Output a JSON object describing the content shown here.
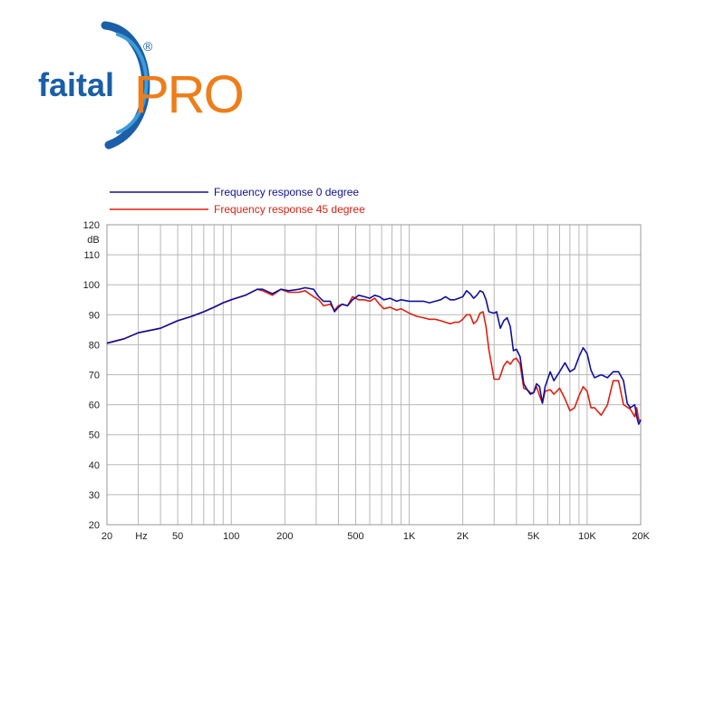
{
  "logo": {
    "wordmark": "faital",
    "mark": "PRO",
    "registered": "®",
    "colors": {
      "blue": "#1a5fa8",
      "orange": "#ee7d1a"
    }
  },
  "chart_data": {
    "type": "line",
    "title": "",
    "xlabel": "Hz",
    "ylabel": "dB",
    "x_scale": "log",
    "xlim": [
      20,
      20000
    ],
    "ylim": [
      20,
      120
    ],
    "grid": true,
    "legend_position": "top-left",
    "y_ticks": [
      20,
      30,
      40,
      50,
      60,
      70,
      80,
      90,
      100,
      110,
      120
    ],
    "x_ticks": [
      {
        "value": 20,
        "label": "20"
      },
      {
        "value": 50,
        "label": "50"
      },
      {
        "value": 100,
        "label": "100"
      },
      {
        "value": 200,
        "label": "200"
      },
      {
        "value": 500,
        "label": "500"
      },
      {
        "value": 1000,
        "label": "1K"
      },
      {
        "value": 2000,
        "label": "2K"
      },
      {
        "value": 5000,
        "label": "5K"
      },
      {
        "value": 10000,
        "label": "10K"
      },
      {
        "value": 20000,
        "label": "20K"
      }
    ],
    "series": [
      {
        "name": "Frequency response 0 degree",
        "color": "#1010a0",
        "points": [
          [
            20,
            80.5
          ],
          [
            25,
            82
          ],
          [
            30,
            84
          ],
          [
            40,
            85.5
          ],
          [
            50,
            88
          ],
          [
            60,
            89.5
          ],
          [
            70,
            91
          ],
          [
            80,
            92.5
          ],
          [
            90,
            94
          ],
          [
            100,
            95
          ],
          [
            120,
            96.5
          ],
          [
            140,
            98.5
          ],
          [
            150,
            98.5
          ],
          [
            170,
            97
          ],
          [
            190,
            98.5
          ],
          [
            210,
            98
          ],
          [
            240,
            98.5
          ],
          [
            260,
            99
          ],
          [
            290,
            98.5
          ],
          [
            310,
            96
          ],
          [
            330,
            94.5
          ],
          [
            360,
            94.5
          ],
          [
            380,
            91
          ],
          [
            400,
            92.5
          ],
          [
            420,
            93.5
          ],
          [
            450,
            93
          ],
          [
            480,
            95
          ],
          [
            520,
            96.5
          ],
          [
            560,
            96
          ],
          [
            600,
            95.5
          ],
          [
            640,
            96.5
          ],
          [
            680,
            96
          ],
          [
            720,
            95
          ],
          [
            780,
            95.5
          ],
          [
            850,
            94.5
          ],
          [
            900,
            95
          ],
          [
            1000,
            94.5
          ],
          [
            1100,
            94.5
          ],
          [
            1200,
            94.5
          ],
          [
            1300,
            94
          ],
          [
            1400,
            94.5
          ],
          [
            1500,
            95
          ],
          [
            1600,
            96
          ],
          [
            1700,
            95
          ],
          [
            1800,
            95
          ],
          [
            1900,
            95.5
          ],
          [
            2000,
            96
          ],
          [
            2100,
            98
          ],
          [
            2200,
            97
          ],
          [
            2300,
            95.5
          ],
          [
            2400,
            96.5
          ],
          [
            2500,
            98
          ],
          [
            2600,
            97.5
          ],
          [
            2700,
            95
          ],
          [
            2800,
            91
          ],
          [
            3000,
            90.5
          ],
          [
            3100,
            91
          ],
          [
            3250,
            85.5
          ],
          [
            3400,
            88
          ],
          [
            3550,
            89
          ],
          [
            3700,
            86
          ],
          [
            3850,
            78
          ],
          [
            4000,
            78.5
          ],
          [
            4200,
            76
          ],
          [
            4400,
            67
          ],
          [
            4600,
            65
          ],
          [
            4800,
            63.5
          ],
          [
            5000,
            64
          ],
          [
            5200,
            67
          ],
          [
            5400,
            66
          ],
          [
            5600,
            60.5
          ],
          [
            5800,
            66
          ],
          [
            6200,
            71
          ],
          [
            6500,
            68
          ],
          [
            7000,
            71
          ],
          [
            7500,
            74
          ],
          [
            8000,
            71
          ],
          [
            8500,
            72
          ],
          [
            9000,
            76
          ],
          [
            9500,
            79
          ],
          [
            10000,
            77
          ],
          [
            10500,
            71.5
          ],
          [
            11000,
            69
          ],
          [
            12000,
            70
          ],
          [
            13000,
            69
          ],
          [
            14000,
            71
          ],
          [
            15000,
            71
          ],
          [
            16000,
            68
          ],
          [
            16800,
            60.5
          ],
          [
            17500,
            59
          ],
          [
            18500,
            60
          ],
          [
            19000,
            56
          ],
          [
            19500,
            53.5
          ],
          [
            20000,
            55
          ]
        ]
      },
      {
        "name": "Frequency response 45 degree",
        "color": "#e02010",
        "points": [
          [
            20,
            80.5
          ],
          [
            25,
            82
          ],
          [
            30,
            84
          ],
          [
            40,
            85.5
          ],
          [
            50,
            88
          ],
          [
            60,
            89.5
          ],
          [
            70,
            91
          ],
          [
            80,
            92.5
          ],
          [
            90,
            94
          ],
          [
            100,
            95
          ],
          [
            120,
            96.5
          ],
          [
            140,
            98.5
          ],
          [
            150,
            98
          ],
          [
            170,
            96.5
          ],
          [
            190,
            98.5
          ],
          [
            210,
            97.5
          ],
          [
            240,
            97.5
          ],
          [
            260,
            98
          ],
          [
            290,
            96
          ],
          [
            310,
            95
          ],
          [
            330,
            93
          ],
          [
            360,
            93.5
          ],
          [
            380,
            91.5
          ],
          [
            400,
            93
          ],
          [
            420,
            93.5
          ],
          [
            450,
            93
          ],
          [
            480,
            96
          ],
          [
            520,
            95
          ],
          [
            560,
            95
          ],
          [
            600,
            94.5
          ],
          [
            640,
            95.5
          ],
          [
            680,
            93.5
          ],
          [
            720,
            92
          ],
          [
            780,
            92.5
          ],
          [
            850,
            91.5
          ],
          [
            900,
            92
          ],
          [
            1000,
            90.5
          ],
          [
            1100,
            89.5
          ],
          [
            1200,
            89
          ],
          [
            1300,
            88.5
          ],
          [
            1400,
            88.5
          ],
          [
            1500,
            88
          ],
          [
            1600,
            87.5
          ],
          [
            1700,
            87
          ],
          [
            1800,
            87.5
          ],
          [
            1900,
            87.5
          ],
          [
            2000,
            88.5
          ],
          [
            2100,
            90
          ],
          [
            2200,
            90
          ],
          [
            2300,
            87
          ],
          [
            2400,
            88
          ],
          [
            2500,
            90.5
          ],
          [
            2600,
            91
          ],
          [
            2700,
            86
          ],
          [
            2800,
            78.5
          ],
          [
            3000,
            68.5
          ],
          [
            3200,
            68.5
          ],
          [
            3400,
            73
          ],
          [
            3550,
            74.5
          ],
          [
            3700,
            73.5
          ],
          [
            3850,
            75
          ],
          [
            4000,
            75.5
          ],
          [
            4200,
            73.5
          ],
          [
            4400,
            65.5
          ],
          [
            4600,
            65
          ],
          [
            4800,
            64
          ],
          [
            5000,
            64
          ],
          [
            5200,
            66
          ],
          [
            5400,
            63
          ],
          [
            5600,
            60.5
          ],
          [
            5800,
            64.5
          ],
          [
            6200,
            65
          ],
          [
            6500,
            63.5
          ],
          [
            7000,
            65.5
          ],
          [
            7500,
            62
          ],
          [
            8000,
            58
          ],
          [
            8500,
            59
          ],
          [
            9000,
            63
          ],
          [
            9500,
            66
          ],
          [
            10000,
            64.5
          ],
          [
            10500,
            59
          ],
          [
            11000,
            59
          ],
          [
            12000,
            56.5
          ],
          [
            13000,
            60
          ],
          [
            14000,
            68
          ],
          [
            15000,
            68
          ],
          [
            16000,
            60
          ],
          [
            17500,
            58.5
          ],
          [
            18500,
            56
          ],
          [
            19000,
            59
          ],
          [
            19500,
            55
          ],
          [
            20000,
            54.5
          ]
        ]
      }
    ]
  }
}
